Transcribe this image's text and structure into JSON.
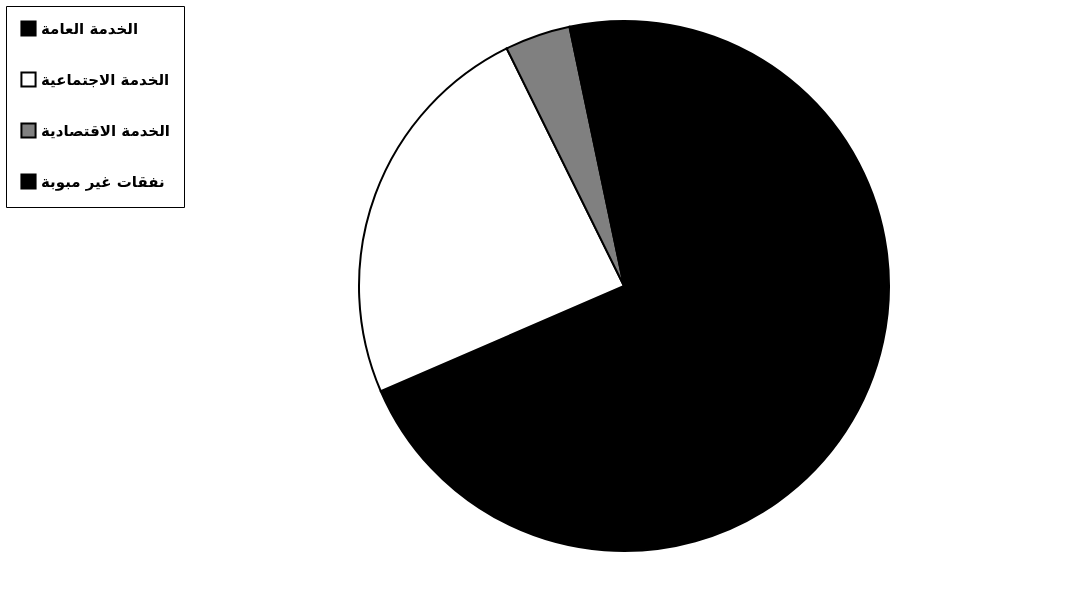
{
  "chart_data": {
    "type": "pie",
    "categories": [
      "الخدمة العامة",
      "الخدمة الاجتماعية",
      "الخدمة الاقتصادية",
      "نفقات غير مبوبة"
    ],
    "values": [
      68.5,
      24.2,
      4,
      3.3
    ],
    "colors": [
      "#000000",
      "#ffffff",
      "#808080",
      "#000000"
    ],
    "legend": "left"
  }
}
